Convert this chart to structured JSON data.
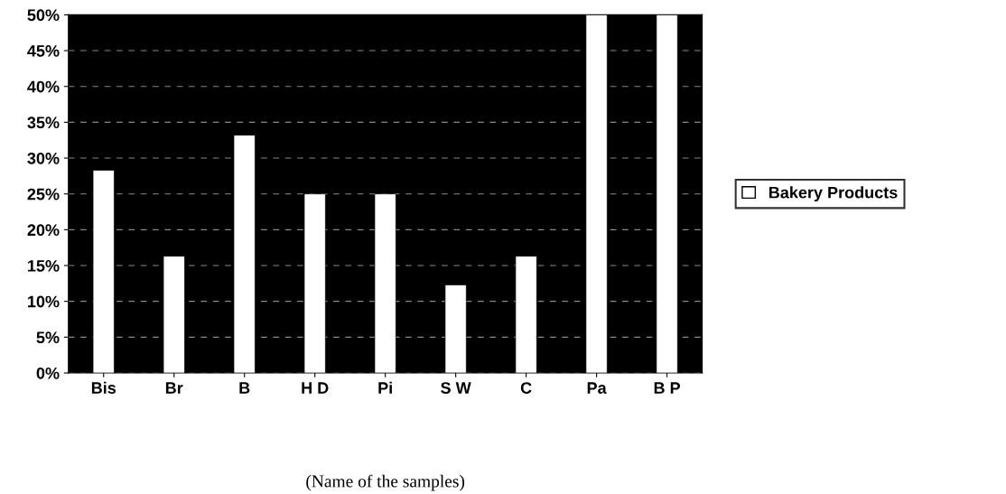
{
  "chart_data": {
    "type": "bar",
    "xlabel": "(Name of the samples)",
    "categories": [
      "Bis",
      "Br",
      "B",
      "H D",
      "Pi",
      "S W",
      "C",
      "Pa",
      "B P"
    ],
    "series": [
      {
        "name": "Bakery Products",
        "color": "#ffffff",
        "values": [
          28.3,
          16.3,
          33.2,
          25,
          25,
          12.3,
          16.3,
          50,
          50
        ]
      }
    ],
    "ylim": [
      0,
      50
    ],
    "yticks": [
      {
        "value": 0,
        "label": "0%"
      },
      {
        "value": 5,
        "label": "5%"
      },
      {
        "value": 10,
        "label": "10%"
      },
      {
        "value": 15,
        "label": "15%"
      },
      {
        "value": 20,
        "label": "20%"
      },
      {
        "value": 25,
        "label": "25%"
      },
      {
        "value": 30,
        "label": "30%"
      },
      {
        "value": 35,
        "label": "35%"
      },
      {
        "value": 40,
        "label": "40%"
      },
      {
        "value": 45,
        "label": "45%"
      },
      {
        "value": 50,
        "label": "50%"
      }
    ],
    "grid": "y",
    "legend": "right"
  }
}
